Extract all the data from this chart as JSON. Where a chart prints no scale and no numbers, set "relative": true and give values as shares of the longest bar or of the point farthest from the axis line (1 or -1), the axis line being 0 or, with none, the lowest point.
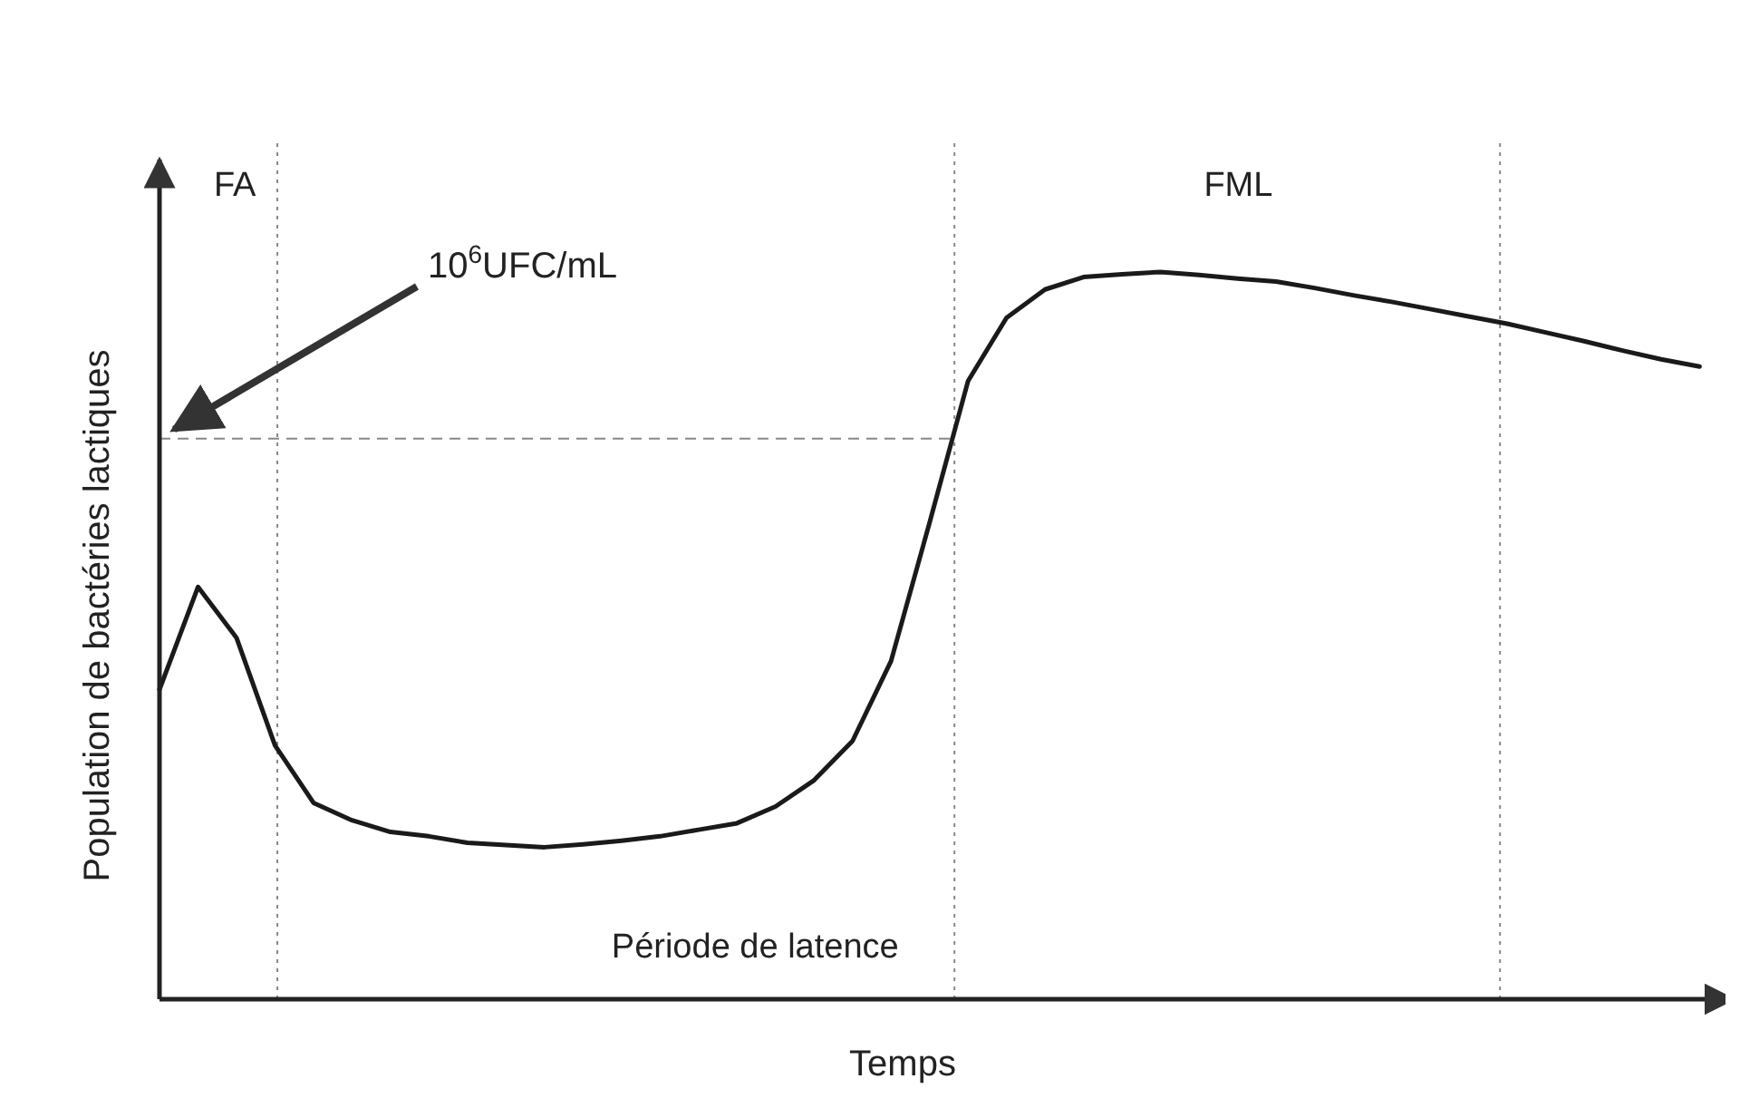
{
  "chart_data": {
    "type": "line",
    "relative": true,
    "xlabel": "Temps",
    "ylabel": "Population de bactéries lactiques",
    "line_style": "solid",
    "categories": [
      null,
      null,
      null,
      null,
      null,
      null,
      null,
      null,
      null,
      null,
      null,
      null,
      null,
      null,
      null,
      null,
      null,
      null,
      null,
      null,
      null,
      null,
      null,
      null,
      null,
      null,
      null,
      null,
      null,
      null,
      null,
      null,
      null,
      null,
      null,
      null,
      null,
      null,
      null,
      null,
      null
    ],
    "series": [
      {
        "color": "#1a1a1a",
        "values": [
          0.426,
          0.567,
          0.497,
          0.349,
          0.27,
          0.246,
          0.23,
          0.224,
          0.215,
          0.212,
          0.209,
          0.213,
          0.218,
          0.224,
          0.233,
          0.242,
          0.265,
          0.301,
          0.355,
          0.465,
          0.655,
          0.85,
          0.937,
          0.976,
          0.993,
          0.997,
          1,
          0.996,
          0.991,
          0.987,
          0.978,
          0.968,
          0.959,
          0.949,
          0.939,
          0.929,
          0.917,
          0.905,
          0.892,
          0.88,
          0.87
        ]
      }
    ],
    "ref_lines": [
      {
        "axis": "y",
        "value": 0.771,
        "label": "10$^{6}$UFC/mL",
        "line_style": "dashed",
        "color": "#888888"
      }
    ],
    "annotations": [
      "FA",
      "FML",
      "Période de latence"
    ]
  }
}
